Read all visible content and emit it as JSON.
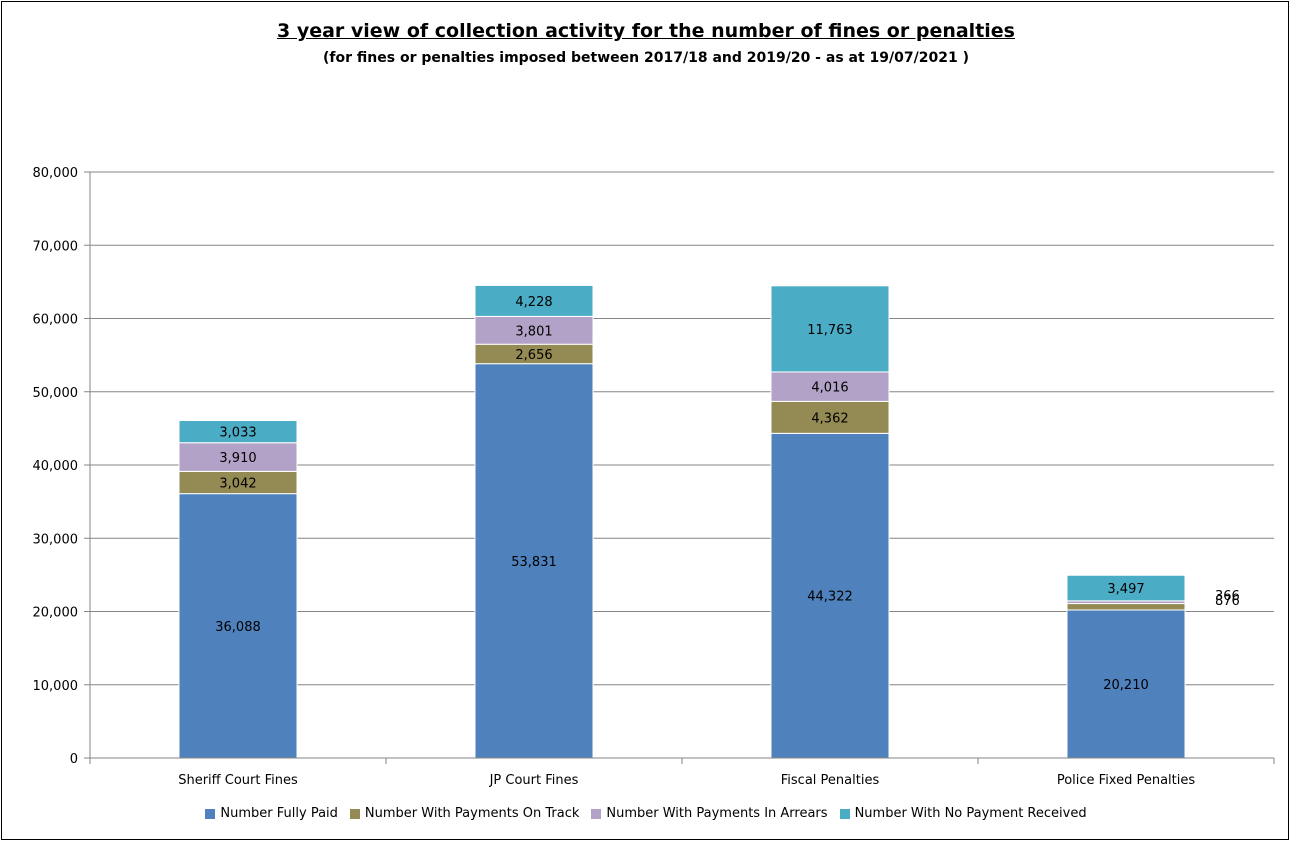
{
  "chart_data": {
    "type": "bar",
    "stacked": true,
    "title": "3 year view of collection activity for the number of fines or penalties",
    "subtitle": "(for fines or penalties imposed between 2017/18 and 2019/20 - as at  19/07/2021 )",
    "categories": [
      "Sheriff Court Fines",
      "JP Court Fines",
      "Fiscal Penalties",
      "Police Fixed Penalties"
    ],
    "series": [
      {
        "name": "Number Fully Paid",
        "color": "#4F81BD",
        "values": [
          36088,
          53831,
          44322,
          20210
        ],
        "labels": [
          "36,088",
          "53,831",
          "44,322",
          "20,210"
        ]
      },
      {
        "name": "Number With Payments On Track",
        "color": "#948A54",
        "values": [
          3042,
          2656,
          4362,
          876
        ],
        "labels": [
          "3,042",
          "2,656",
          "4,362",
          "876"
        ]
      },
      {
        "name": "Number With Payments In Arrears",
        "color": "#B3A2C7",
        "values": [
          3910,
          3801,
          4016,
          366
        ],
        "labels": [
          "3,910",
          "3,801",
          "4,016",
          "366"
        ]
      },
      {
        "name": "Number With No Payment Received",
        "color": "#4BACC6",
        "values": [
          3033,
          4228,
          11763,
          3497
        ],
        "labels": [
          "3,033",
          "4,228",
          "11,763",
          "3,497"
        ]
      }
    ],
    "ylim": [
      0,
      80000
    ],
    "yticks": [
      0,
      10000,
      20000,
      30000,
      40000,
      50000,
      60000,
      70000,
      80000
    ],
    "ytick_labels": [
      "0",
      "10,000",
      "20,000",
      "30,000",
      "40,000",
      "50,000",
      "60,000",
      "70,000",
      "80,000"
    ],
    "grid": true,
    "legend_position": "bottom"
  }
}
